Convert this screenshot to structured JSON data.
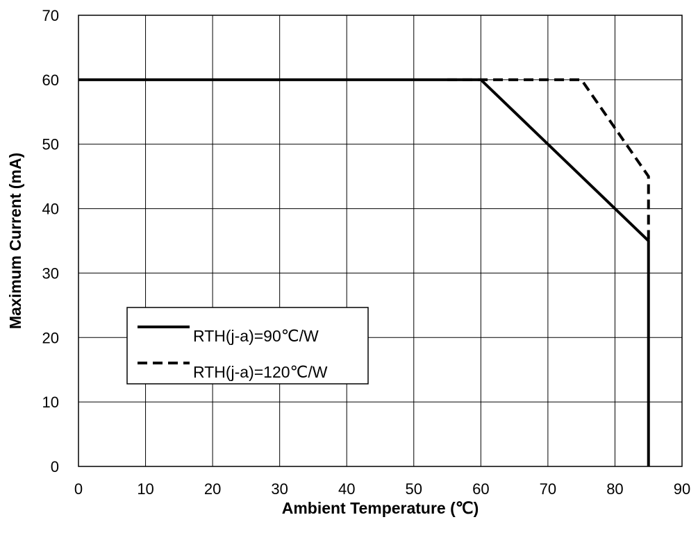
{
  "chart_data": {
    "type": "line",
    "title": "",
    "xlabel": "Ambient Temperature  (℃)",
    "ylabel": "Maximum Current  (mA)",
    "xlim": [
      0,
      90
    ],
    "ylim": [
      0,
      70
    ],
    "xticks": [
      0,
      10,
      20,
      30,
      40,
      50,
      60,
      70,
      80,
      90
    ],
    "yticks": [
      0,
      10,
      20,
      30,
      40,
      50,
      60,
      70
    ],
    "grid": true,
    "legend_position": "center-left",
    "series": [
      {
        "name": "RTH(j-a)=90℃/W",
        "style": "solid",
        "color": "#000000",
        "points": [
          [
            0,
            60
          ],
          [
            60,
            60
          ],
          [
            85,
            35
          ],
          [
            85,
            0
          ]
        ]
      },
      {
        "name": "RTH(j-a)=120℃/W",
        "style": "dashed",
        "color": "#000000",
        "points": [
          [
            55,
            60
          ],
          [
            75,
            60
          ],
          [
            85,
            45
          ],
          [
            85,
            35
          ]
        ]
      }
    ]
  }
}
